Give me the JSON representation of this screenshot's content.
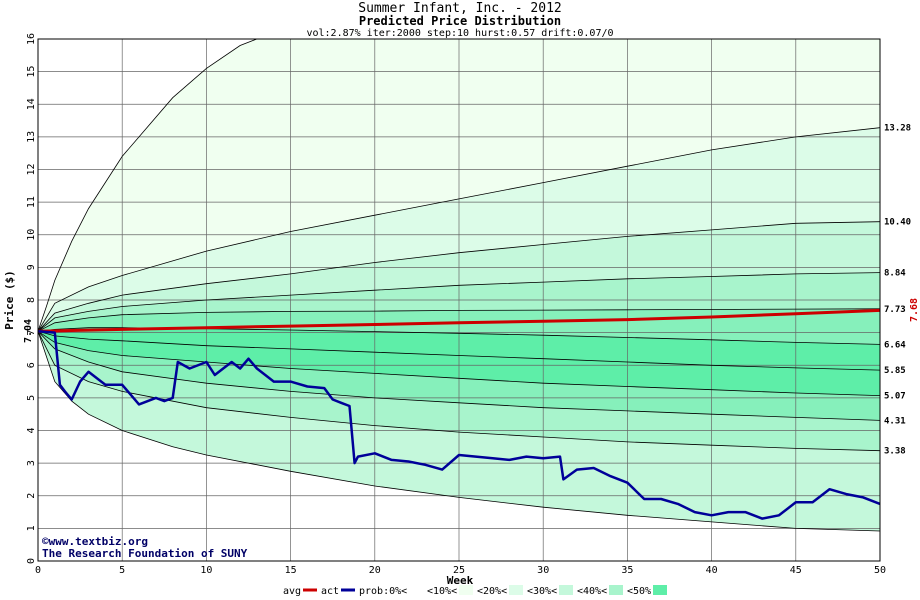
{
  "chart_data": {
    "type": "area",
    "title": "Summer Infant, Inc. - 2012",
    "subtitle": "Predicted Price Distribution",
    "params": "vol:2.87% iter:2000 step:10 hurst:0.57 drift:0.07/0",
    "xlabel": "Week",
    "ylabel": "Price ($)",
    "xlim": [
      0,
      50
    ],
    "ylim": [
      0,
      16
    ],
    "x_ticks": [
      0,
      5,
      10,
      15,
      20,
      25,
      30,
      35,
      40,
      45,
      50
    ],
    "y_ticks": [
      0,
      1,
      2,
      3,
      4,
      5,
      6,
      7,
      8,
      9,
      10,
      11,
      12,
      13,
      14,
      15,
      16
    ],
    "grid": true,
    "start_price": 7.04,
    "start_label": "7.04",
    "end_actual_label": "7.68",
    "band_colors": [
      "#F0FFF0",
      "#DCFCE8",
      "#C4F8DB",
      "#A8F4CC",
      "#86F0BB",
      "#5EEEA8"
    ],
    "percentile_end_values": [
      {
        "label": "13.28",
        "value": 13.28
      },
      {
        "label": "10.40",
        "value": 10.4
      },
      {
        "label": "8.84",
        "value": 8.84
      },
      {
        "label": "7.73",
        "value": 7.73
      },
      {
        "label": "6.64",
        "value": 6.64
      },
      {
        "label": "5.85",
        "value": 5.85
      },
      {
        "label": "5.07",
        "value": 5.07
      },
      {
        "label": "4.31",
        "value": 4.31
      },
      {
        "label": "3.38",
        "value": 3.38
      }
    ],
    "curves": [
      {
        "x": [
          0,
          0.5,
          1,
          2,
          3,
          5,
          8,
          10,
          12,
          13
        ],
        "y": [
          7.04,
          7.8,
          8.6,
          9.8,
          10.8,
          12.4,
          14.2,
          15.1,
          15.8,
          16
        ]
      },
      {
        "x": [
          0,
          1,
          3,
          5,
          10,
          15,
          20,
          25,
          30,
          35,
          40,
          45,
          50
        ],
        "y": [
          7.04,
          7.9,
          8.4,
          8.75,
          9.5,
          10.1,
          10.6,
          11.1,
          11.6,
          12.1,
          12.6,
          13.0,
          13.28
        ]
      },
      {
        "x": [
          0,
          1,
          3,
          5,
          10,
          15,
          20,
          25,
          30,
          35,
          40,
          45,
          50
        ],
        "y": [
          7.04,
          7.6,
          7.9,
          8.15,
          8.5,
          8.8,
          9.15,
          9.45,
          9.7,
          9.95,
          10.15,
          10.35,
          10.4
        ]
      },
      {
        "x": [
          0,
          1,
          3,
          5,
          10,
          15,
          20,
          25,
          30,
          35,
          40,
          45,
          50
        ],
        "y": [
          7.04,
          7.45,
          7.65,
          7.8,
          8.0,
          8.15,
          8.3,
          8.45,
          8.55,
          8.65,
          8.72,
          8.8,
          8.84
        ]
      },
      {
        "x": [
          0,
          1,
          3,
          5,
          10,
          15,
          20,
          25,
          30,
          35,
          40,
          45,
          50
        ],
        "y": [
          7.04,
          7.3,
          7.45,
          7.55,
          7.62,
          7.65,
          7.66,
          7.68,
          7.69,
          7.7,
          7.71,
          7.72,
          7.73
        ]
      },
      {
        "x": [
          0,
          1,
          3,
          5,
          10,
          15,
          20,
          25,
          30,
          35,
          40,
          45,
          50
        ],
        "y": [
          7.04,
          7.1,
          7.15,
          7.15,
          7.12,
          7.08,
          7.03,
          6.98,
          6.92,
          6.85,
          6.78,
          6.7,
          6.64
        ]
      },
      {
        "x": [
          0,
          1,
          3,
          5,
          10,
          15,
          20,
          25,
          30,
          35,
          40,
          45,
          50
        ],
        "y": [
          7.04,
          6.9,
          6.8,
          6.75,
          6.6,
          6.5,
          6.4,
          6.3,
          6.2,
          6.1,
          6.0,
          5.92,
          5.85
        ]
      },
      {
        "x": [
          0,
          1,
          3,
          5,
          10,
          15,
          20,
          25,
          30,
          35,
          40,
          45,
          50
        ],
        "y": [
          7.04,
          6.7,
          6.45,
          6.3,
          6.1,
          5.9,
          5.75,
          5.6,
          5.45,
          5.35,
          5.25,
          5.15,
          5.07
        ]
      },
      {
        "x": [
          0,
          1,
          3,
          5,
          10,
          15,
          20,
          25,
          30,
          35,
          40,
          45,
          50
        ],
        "y": [
          7.04,
          6.5,
          6.1,
          5.8,
          5.45,
          5.2,
          5.0,
          4.85,
          4.7,
          4.6,
          4.5,
          4.4,
          4.31
        ]
      },
      {
        "x": [
          0,
          1,
          3,
          5,
          10,
          15,
          20,
          25,
          30,
          35,
          40,
          45,
          50
        ],
        "y": [
          7.04,
          6.0,
          5.5,
          5.2,
          4.7,
          4.4,
          4.15,
          3.95,
          3.8,
          3.65,
          3.55,
          3.45,
          3.38
        ]
      },
      {
        "x": [
          0,
          1,
          2,
          3,
          5,
          8,
          10,
          15,
          20,
          25,
          30,
          35,
          40,
          45,
          50
        ],
        "y": [
          7.04,
          5.5,
          4.9,
          4.5,
          4.0,
          3.5,
          3.25,
          2.75,
          2.3,
          1.95,
          1.65,
          1.4,
          1.2,
          1.0,
          0.92
        ]
      }
    ],
    "series": [
      {
        "name": "avg",
        "color": "#CC0000",
        "x": [
          0,
          5,
          10,
          15,
          20,
          25,
          30,
          35,
          40,
          45,
          50
        ],
        "y": [
          7.04,
          7.1,
          7.15,
          7.2,
          7.25,
          7.3,
          7.35,
          7.4,
          7.48,
          7.58,
          7.68
        ]
      },
      {
        "name": "act",
        "color": "#000099",
        "x": [
          0,
          1,
          1.3,
          1.6,
          2,
          2.5,
          3,
          4,
          5,
          5.5,
          6,
          7,
          7.5,
          8,
          8.3,
          9,
          10,
          10.5,
          11,
          11.5,
          12,
          12.5,
          13,
          14,
          15,
          16,
          17,
          17.5,
          18,
          18.5,
          18.8,
          19,
          20,
          21,
          22,
          23,
          24,
          25,
          26,
          27,
          28,
          29,
          30,
          31,
          31.2,
          32,
          33,
          34,
          35,
          36,
          37,
          38,
          39,
          40,
          41,
          42,
          43,
          44,
          45,
          46,
          47,
          48,
          49,
          50
        ],
        "y": [
          7.04,
          7.0,
          5.4,
          5.2,
          4.95,
          5.5,
          5.8,
          5.4,
          5.4,
          5.1,
          4.8,
          5.0,
          4.9,
          5.0,
          6.1,
          5.9,
          6.1,
          5.7,
          5.9,
          6.1,
          5.9,
          6.2,
          5.9,
          5.5,
          5.5,
          5.35,
          5.3,
          4.95,
          4.85,
          4.75,
          3.0,
          3.2,
          3.3,
          3.1,
          3.05,
          2.95,
          2.8,
          3.25,
          3.2,
          3.15,
          3.1,
          3.2,
          3.15,
          3.2,
          2.5,
          2.8,
          2.85,
          2.6,
          2.4,
          1.9,
          1.9,
          1.75,
          1.5,
          1.4,
          1.5,
          1.5,
          1.3,
          1.4,
          1.8,
          1.8,
          2.2,
          2.05,
          1.95,
          1.75
        ]
      }
    ],
    "legend": [
      {
        "label": "avg",
        "kind": "line",
        "color": "#CC0000"
      },
      {
        "label": "act",
        "kind": "line",
        "color": "#000099"
      },
      {
        "label": "prob:0%<",
        "kind": "swatch",
        "color": "#FFFFFF"
      },
      {
        "label": "<10%<",
        "kind": "swatch",
        "color": "#F0FFF0"
      },
      {
        "label": "<20%<",
        "kind": "swatch",
        "color": "#DCFCE8"
      },
      {
        "label": "<30%<",
        "kind": "swatch",
        "color": "#C4F8DB"
      },
      {
        "label": "<40%<",
        "kind": "swatch",
        "color": "#A8F4CC"
      },
      {
        "label": "<50%",
        "kind": "swatch",
        "color": "#5EEEA8"
      }
    ],
    "legend_position": "bottom",
    "watermark": [
      "©www.textbiz.org",
      "The Research Foundation of SUNY"
    ]
  }
}
